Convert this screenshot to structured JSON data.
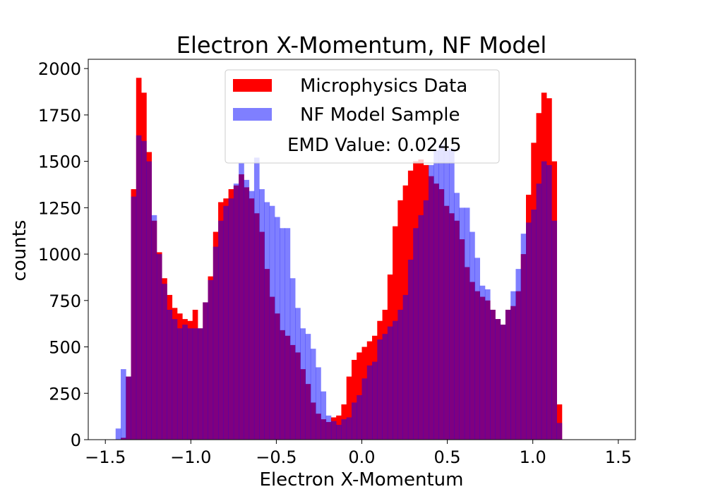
{
  "chart_data": {
    "type": "histogram",
    "title": "Electron X-Momentum, NF Model",
    "xlabel": "Electron X-Momentum",
    "ylabel": "counts",
    "xlim": [
      -1.6,
      1.6
    ],
    "ylim": [
      0,
      2050
    ],
    "x_ticks": [
      -1.5,
      -1.0,
      -0.5,
      0.0,
      0.5,
      1.0,
      1.5
    ],
    "x_tick_labels": [
      "−1.5",
      "−1.0",
      "−0.5",
      "0.0",
      "0.5",
      "1.0",
      "1.5"
    ],
    "y_ticks": [
      0,
      250,
      500,
      750,
      1000,
      1250,
      1500,
      1750,
      2000
    ],
    "y_tick_labels": [
      "0",
      "250",
      "500",
      "750",
      "1000",
      "1250",
      "1500",
      "1750",
      "2000"
    ],
    "bin_edges": {
      "start": -1.44,
      "width": 0.03,
      "count": 96
    },
    "legend": {
      "position": "top-center",
      "note": "EMD Value: 0.0245"
    },
    "series": [
      {
        "name": "Microphysics Data",
        "color": "#ff0000",
        "alpha": 1.0,
        "values": [
          0,
          10,
          340,
          1350,
          1950,
          1870,
          1550,
          1180,
          1010,
          870,
          780,
          710,
          680,
          650,
          640,
          700,
          600,
          740,
          880,
          1120,
          1280,
          1300,
          1350,
          1370,
          1430,
          1360,
          1300,
          1220,
          1120,
          920,
          770,
          680,
          590,
          560,
          510,
          470,
          380,
          300,
          200,
          140,
          110,
          95,
          120,
          130,
          190,
          340,
          430,
          470,
          500,
          530,
          560,
          640,
          700,
          890,
          1150,
          1290,
          1370,
          1450,
          1500,
          1510,
          1480,
          1420,
          1380,
          1350,
          1260,
          1220,
          1180,
          1080,
          930,
          850,
          800,
          770,
          750,
          700,
          650,
          620,
          700,
          720,
          800,
          1000,
          1320,
          1600,
          1760,
          1870,
          1840,
          1500,
          190,
          0,
          0,
          0,
          0,
          0,
          0,
          0,
          0,
          0
        ]
      },
      {
        "name": "NF Model Sample",
        "color": "#0000ff",
        "alpha": 0.5,
        "values": [
          60,
          380,
          340,
          1310,
          1640,
          1610,
          1500,
          1210,
          1000,
          840,
          700,
          650,
          600,
          620,
          600,
          600,
          600,
          740,
          860,
          1040,
          1180,
          1260,
          1300,
          1380,
          1490,
          1400,
          1340,
          1520,
          1350,
          1280,
          1260,
          1200,
          1140,
          1140,
          870,
          710,
          600,
          570,
          490,
          390,
          260,
          130,
          100,
          80,
          110,
          120,
          200,
          240,
          330,
          400,
          420,
          540,
          570,
          610,
          640,
          700,
          780,
          970,
          1140,
          1210,
          1290,
          1480,
          1560,
          1590,
          1560,
          1570,
          1330,
          1250,
          1250,
          1120,
          980,
          830,
          810,
          700,
          650,
          620,
          700,
          800,
          920,
          1110,
          1170,
          1240,
          1380,
          1500,
          1480,
          1180,
          90,
          0,
          0,
          0,
          0,
          0,
          0,
          0,
          0,
          0
        ]
      }
    ]
  }
}
